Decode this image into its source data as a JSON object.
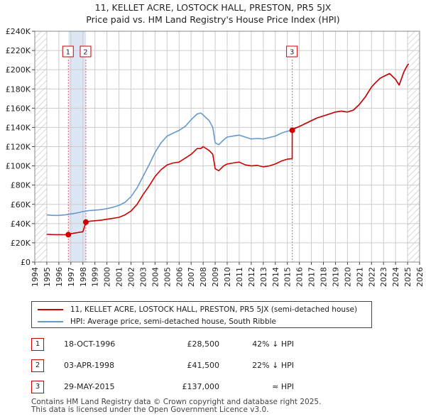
{
  "chart_data": {
    "type": "line",
    "title": "11, KELLET ACRE, LOSTOCK HALL, PRESTON, PR5 5JX",
    "subtitle": "Price paid vs. HM Land Registry's House Price Index (HPI)",
    "xlim": [
      1994,
      2026
    ],
    "ylim": [
      0,
      240000
    ],
    "x_ticks": [
      1994,
      1995,
      1996,
      1997,
      1998,
      1999,
      2000,
      2001,
      2002,
      2003,
      2004,
      2005,
      2006,
      2007,
      2008,
      2009,
      2010,
      2011,
      2012,
      2013,
      2014,
      2015,
      2016,
      2017,
      2018,
      2019,
      2020,
      2021,
      2022,
      2023,
      2024,
      2025,
      2026
    ],
    "x_tick_labels": [
      "1994",
      "1995",
      "1996",
      "1997",
      "1998",
      "1999",
      "2000",
      "2001",
      "2002",
      "2003",
      "2004",
      "2005",
      "2006",
      "2007",
      "2008",
      "2009",
      "2010",
      "2011",
      "2012",
      "2013",
      "2014",
      "2015",
      "2016",
      "2017",
      "2018",
      "2019",
      "2020",
      "2021",
      "2022",
      "2023",
      "2024",
      "2025",
      "2026"
    ],
    "y_ticks": [
      0,
      20000,
      40000,
      60000,
      80000,
      100000,
      120000,
      140000,
      160000,
      180000,
      200000,
      220000,
      240000
    ],
    "y_tick_labels": [
      "£0",
      "£20K",
      "£40K",
      "£60K",
      "£80K",
      "£100K",
      "£120K",
      "£140K",
      "£160K",
      "£180K",
      "£200K",
      "£220K",
      "£240K"
    ],
    "grid": true,
    "hatched_ranges": [
      [
        1994,
        1995
      ],
      [
        2025,
        2026
      ]
    ],
    "sale_bands": [
      [
        1996.8,
        1998.25
      ]
    ],
    "series": [
      {
        "name": "11, KELLET ACRE, LOSTOCK HALL, PRESTON, PR5 5JX (semi-detached house)",
        "color": "#cc0000",
        "x": [
          1995,
          1995.5,
          1996,
          1996.5,
          1996.79,
          1997,
          1997.5,
          1998,
          1998.25,
          1998.6,
          1999,
          1999.5,
          2000,
          2000.5,
          2001,
          2001.5,
          2002,
          2002.5,
          2003,
          2003.5,
          2004,
          2004.5,
          2005,
          2005.5,
          2006,
          2006.5,
          2007,
          2007.5,
          2007.8,
          2008,
          2008.5,
          2008.8,
          2009,
          2009.3,
          2009.7,
          2010,
          2010.5,
          2011,
          2011.5,
          2012,
          2012.5,
          2013,
          2013.5,
          2014,
          2014.5,
          2015,
          2015.4,
          2015.41,
          2015.6,
          2016,
          2016.5,
          2017,
          2017.5,
          2018,
          2018.5,
          2019,
          2019.5,
          2020,
          2020.5,
          2021,
          2021.5,
          2022,
          2022.3,
          2022.7,
          2023,
          2023.5,
          2024,
          2024.3,
          2024.7,
          2025,
          2025.1
        ],
        "y": [
          28800,
          28600,
          28500,
          28400,
          28500,
          29500,
          30500,
          31500,
          41500,
          42500,
          43000,
          43500,
          44500,
          45500,
          46500,
          49000,
          53000,
          60000,
          70000,
          79000,
          89000,
          96000,
          101000,
          103000,
          104000,
          108000,
          112000,
          118000,
          118000,
          120000,
          116000,
          112000,
          97000,
          95000,
          100000,
          102000,
          103000,
          104000,
          101000,
          100000,
          100500,
          99000,
          100000,
          102000,
          105000,
          107000,
          107500,
          137000,
          139000,
          141000,
          144000,
          147000,
          150000,
          152000,
          154000,
          156000,
          157000,
          156000,
          158000,
          164000,
          172000,
          182000,
          186000,
          191000,
          193000,
          196000,
          190000,
          184000,
          198000,
          205000,
          206000
        ]
      },
      {
        "name": "HPI: Average price, semi-detached house, South Ribble",
        "color": "#6699cc",
        "x": [
          1995,
          1995.5,
          1996,
          1996.5,
          1997,
          1997.5,
          1998,
          1998.5,
          1999,
          1999.5,
          2000,
          2000.5,
          2001,
          2001.5,
          2002,
          2002.5,
          2003,
          2003.5,
          2004,
          2004.5,
          2005,
          2005.5,
          2006,
          2006.5,
          2007,
          2007.5,
          2007.8,
          2008,
          2008.5,
          2008.8,
          2009,
          2009.3,
          2009.7,
          2010,
          2010.5,
          2011,
          2011.5,
          2012,
          2012.5,
          2013,
          2013.5,
          2014,
          2014.5,
          2015,
          2015.4,
          2015.6,
          2016,
          2016.5,
          2017,
          2017.5,
          2018,
          2018.5,
          2019,
          2019.5,
          2020,
          2020.5,
          2021,
          2021.5,
          2022,
          2022.3,
          2022.7,
          2023,
          2023.5,
          2024,
          2024.3,
          2024.7,
          2025,
          2025.1
        ],
        "y": [
          49000,
          48500,
          48500,
          49000,
          50000,
          51000,
          52500,
          53500,
          54000,
          54500,
          55500,
          57000,
          59000,
          62000,
          68000,
          77000,
          89000,
          101000,
          114000,
          124000,
          131000,
          134000,
          137000,
          141000,
          148000,
          154000,
          155000,
          153000,
          147000,
          140000,
          124000,
          122000,
          127000,
          130000,
          131000,
          132000,
          130000,
          128000,
          128500,
          128000,
          129500,
          131000,
          134000,
          136000,
          137000,
          138500,
          141000,
          144000,
          147000,
          150000,
          152000,
          154000,
          156000,
          157000,
          156000,
          158000,
          164000,
          172000,
          182000,
          186000,
          191000,
          193000,
          196000,
          190000,
          184000,
          198000,
          205000,
          206000
        ]
      }
    ],
    "sales": [
      {
        "label": "1",
        "x": 1996.79,
        "y": 28500
      },
      {
        "label": "2",
        "x": 1998.25,
        "y": 41500
      },
      {
        "label": "3",
        "x": 2015.41,
        "y": 137000
      }
    ]
  },
  "legend": {
    "property_label": "11, KELLET ACRE, LOSTOCK HALL, PRESTON, PR5 5JX (semi-detached house)",
    "hpi_label": "HPI: Average price, semi-detached house, South Ribble"
  },
  "sales_table": [
    {
      "num": "1",
      "date": "18-OCT-1996",
      "price": "£28,500",
      "diff": "42% ↓ HPI"
    },
    {
      "num": "2",
      "date": "03-APR-1998",
      "price": "£41,500",
      "diff": "22% ↓ HPI"
    },
    {
      "num": "3",
      "date": "29-MAY-2015",
      "price": "£137,000",
      "diff": "≈ HPI"
    }
  ],
  "footer": {
    "line1": "Contains HM Land Registry data © Crown copyright and database right 2025.",
    "line2": "This data is licensed under the Open Government Licence v3.0."
  },
  "colors": {
    "property_line": "#cc0000",
    "hpi_line": "#6699cc",
    "band": "#dde6f5",
    "grid": "#cccccc"
  }
}
